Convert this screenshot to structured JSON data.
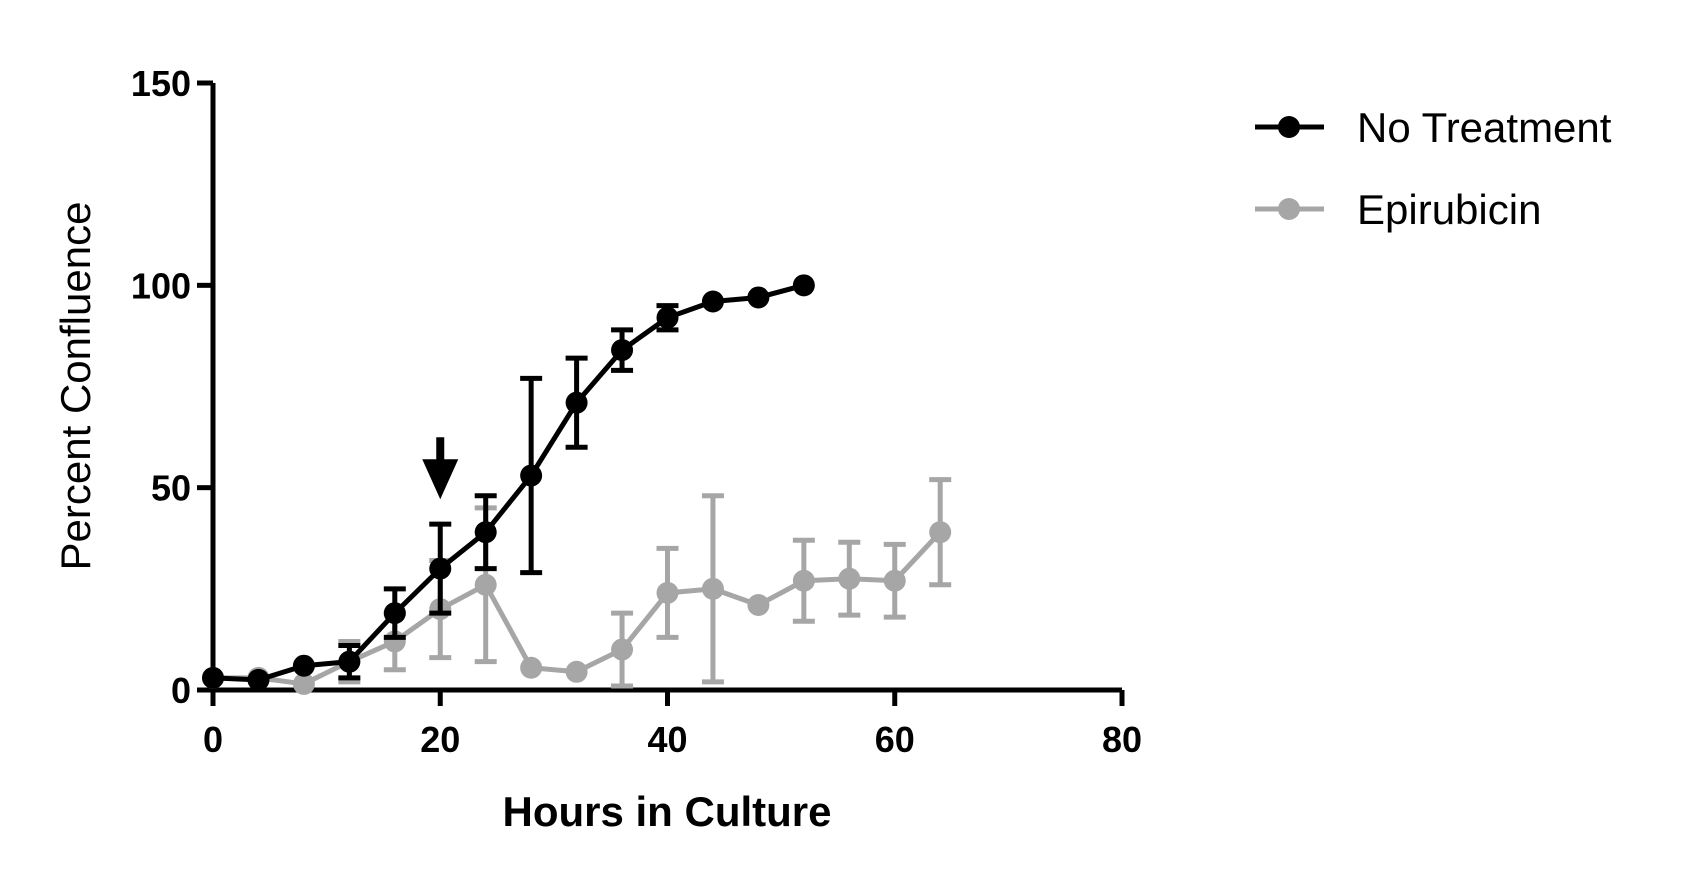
{
  "chart_data": {
    "type": "line",
    "xlabel": "Hours in Culture",
    "ylabel": "Percent Confluence",
    "xlim": [
      0,
      80
    ],
    "ylim": [
      0,
      150
    ],
    "xticks": [
      "0",
      "20",
      "40",
      "60",
      "80"
    ],
    "yticks": [
      "0",
      "50",
      "100",
      "150"
    ],
    "grid": false,
    "legend_position": "top-right",
    "series": [
      {
        "name": "No Treatment",
        "color": "#000000",
        "points": [
          {
            "x": 0,
            "y": 3
          },
          {
            "x": 4,
            "y": 2.5
          },
          {
            "x": 8,
            "y": 6
          },
          {
            "x": 12,
            "y": 7,
            "err_lo": 4,
            "err_hi": 4
          },
          {
            "x": 16,
            "y": 19,
            "err_lo": 6,
            "err_hi": 6
          },
          {
            "x": 20,
            "y": 30,
            "err_lo": 11,
            "err_hi": 11
          },
          {
            "x": 24,
            "y": 39,
            "err_lo": 9,
            "err_hi": 9
          },
          {
            "x": 28,
            "y": 53,
            "err_lo": 24,
            "err_hi": 24
          },
          {
            "x": 32,
            "y": 71,
            "err_lo": 11,
            "err_hi": 11
          },
          {
            "x": 36,
            "y": 84,
            "err_lo": 5,
            "err_hi": 5
          },
          {
            "x": 40,
            "y": 92,
            "err_lo": 3,
            "err_hi": 3
          },
          {
            "x": 44,
            "y": 96
          },
          {
            "x": 48,
            "y": 97
          },
          {
            "x": 52,
            "y": 100
          }
        ]
      },
      {
        "name": "Epirubicin",
        "color": "#a6a6a6",
        "points": [
          {
            "x": 0,
            "y": 3
          },
          {
            "x": 4,
            "y": 3
          },
          {
            "x": 8,
            "y": 1.5
          },
          {
            "x": 12,
            "y": 7,
            "err_lo": 5,
            "err_hi": 5
          },
          {
            "x": 16,
            "y": 12,
            "err_lo": 7,
            "err_hi": 7
          },
          {
            "x": 20,
            "y": 20,
            "err_lo": 12,
            "err_hi": 12
          },
          {
            "x": 24,
            "y": 26,
            "err_lo": 19,
            "err_hi": 19
          },
          {
            "x": 28,
            "y": 5.5
          },
          {
            "x": 32,
            "y": 4.5
          },
          {
            "x": 36,
            "y": 10,
            "err_lo": 9,
            "err_hi": 9
          },
          {
            "x": 40,
            "y": 24,
            "err_lo": 11,
            "err_hi": 11
          },
          {
            "x": 44,
            "y": 25,
            "err_lo": 23,
            "err_hi": 23
          },
          {
            "x": 48,
            "y": 21
          },
          {
            "x": 52,
            "y": 27,
            "err_lo": 10,
            "err_hi": 10
          },
          {
            "x": 56,
            "y": 27.5,
            "err_lo": 9,
            "err_hi": 9
          },
          {
            "x": 60,
            "y": 27,
            "err_lo": 9,
            "err_hi": 9
          },
          {
            "x": 64,
            "y": 39,
            "err_lo": 13,
            "err_hi": 13
          }
        ]
      }
    ],
    "annotations": [
      {
        "type": "arrow-down",
        "x": 20,
        "y": 59
      }
    ]
  }
}
